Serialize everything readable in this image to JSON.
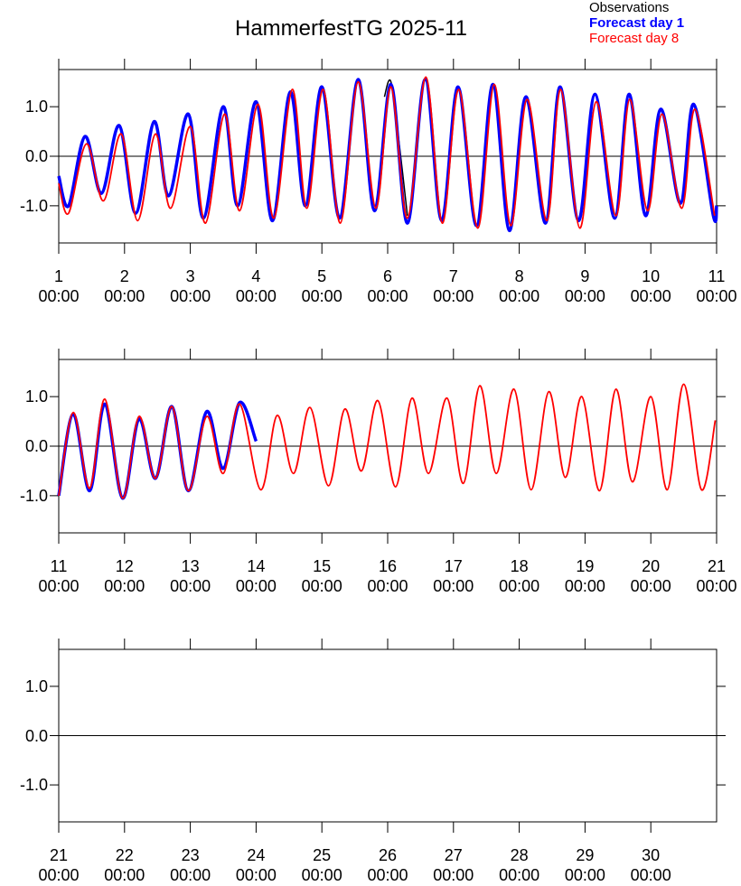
{
  "title": "HammerfestTG 2025-11",
  "chart_data": [
    {
      "type": "line",
      "xlim": [
        1,
        11
      ],
      "ylim": [
        -1.75,
        1.75
      ],
      "yticks": [
        {
          "value": -1,
          "label": "-1.0"
        },
        {
          "value": 0,
          "label": "0.0"
        },
        {
          "value": 1,
          "label": "1.0"
        }
      ],
      "xticks": [
        {
          "value": 1,
          "label": "1\n00:00"
        },
        {
          "value": 2,
          "label": "2\n00:00"
        },
        {
          "value": 3,
          "label": "3\n00:00"
        },
        {
          "value": 4,
          "label": "4\n00:00"
        },
        {
          "value": 5,
          "label": "5\n00:00"
        },
        {
          "value": 6,
          "label": "6\n00:00"
        },
        {
          "value": 7,
          "label": "7\n00:00"
        },
        {
          "value": 8,
          "label": "8\n00:00"
        },
        {
          "value": 9,
          "label": "9\n00:00"
        },
        {
          "value": 10,
          "label": "10\n00:00"
        },
        {
          "value": 11,
          "label": "11\n00:00"
        }
      ],
      "series": [
        {
          "name": "Observations",
          "color": "#000000",
          "x": [
            5.95,
            6.05,
            6.18,
            6.3
          ],
          "values": [
            1.2,
            1.5,
            0.2,
            -1.2
          ]
        },
        {
          "name": "Forecast day 1",
          "color": "#0000ff",
          "x": [
            1.0,
            1.15,
            1.4,
            1.65,
            1.92,
            2.17,
            2.45,
            2.67,
            2.97,
            3.2,
            3.5,
            3.72,
            4.0,
            4.25,
            4.52,
            4.75,
            5.0,
            5.27,
            5.55,
            5.8,
            6.05,
            6.3,
            6.57,
            6.82,
            7.07,
            7.35,
            7.6,
            7.85,
            8.1,
            8.4,
            8.62,
            8.9,
            9.15,
            9.45,
            9.67,
            9.92,
            10.15,
            10.45,
            10.65,
            10.95,
            11.0
          ],
          "values": [
            -0.4,
            -1.0,
            0.4,
            -0.75,
            0.62,
            -1.15,
            0.7,
            -0.8,
            0.85,
            -1.25,
            1.0,
            -1.0,
            1.1,
            -1.3,
            1.3,
            -1.0,
            1.4,
            -1.25,
            1.55,
            -1.1,
            1.45,
            -1.35,
            1.55,
            -1.3,
            1.4,
            -1.4,
            1.45,
            -1.5,
            1.2,
            -1.35,
            1.4,
            -1.3,
            1.25,
            -1.25,
            1.25,
            -1.2,
            0.95,
            -0.95,
            1.05,
            -1.2,
            -1.0
          ]
        },
        {
          "name": "Forecast day 8",
          "color": "#ff0000",
          "x": [
            1.0,
            1.15,
            1.42,
            1.68,
            1.95,
            2.2,
            2.47,
            2.7,
            3.0,
            3.23,
            3.52,
            3.75,
            4.03,
            4.27,
            4.55,
            4.77,
            5.02,
            5.28,
            5.55,
            5.82,
            6.05,
            6.3,
            6.58,
            6.83,
            7.08,
            7.37,
            7.62,
            7.87,
            8.12,
            8.42,
            8.63,
            8.92,
            9.17,
            9.47,
            9.68,
            9.95,
            10.17,
            10.47,
            10.67,
            10.97
          ],
          "values": [
            -0.55,
            -1.15,
            0.25,
            -0.9,
            0.45,
            -1.3,
            0.45,
            -1.05,
            0.6,
            -1.35,
            0.85,
            -1.1,
            1.05,
            -1.25,
            1.35,
            -1.05,
            1.35,
            -1.35,
            1.5,
            -1.05,
            1.4,
            -1.25,
            1.6,
            -1.35,
            1.35,
            -1.45,
            1.45,
            -1.4,
            1.15,
            -1.3,
            1.35,
            -1.45,
            1.1,
            -1.2,
            1.15,
            -1.1,
            0.85,
            -1.05,
            0.95,
            -1.2
          ]
        }
      ]
    },
    {
      "type": "line",
      "xlim": [
        11,
        21
      ],
      "ylim": [
        -1.75,
        1.75
      ],
      "yticks": [
        {
          "value": -1,
          "label": "-1.0"
        },
        {
          "value": 0,
          "label": "0.0"
        },
        {
          "value": 1,
          "label": "1.0"
        }
      ],
      "xticks": [
        {
          "value": 11,
          "label": "11\n00:00"
        },
        {
          "value": 12,
          "label": "12\n00:00"
        },
        {
          "value": 13,
          "label": "13\n00:00"
        },
        {
          "value": 14,
          "label": "14\n00:00"
        },
        {
          "value": 15,
          "label": "15\n00:00"
        },
        {
          "value": 16,
          "label": "16\n00:00"
        },
        {
          "value": 17,
          "label": "17\n00:00"
        },
        {
          "value": 18,
          "label": "18\n00:00"
        },
        {
          "value": 19,
          "label": "19\n00:00"
        },
        {
          "value": 20,
          "label": "20\n00:00"
        },
        {
          "value": 21,
          "label": "21\n00:00"
        }
      ],
      "series": [
        {
          "color": "#0000ff",
          "x": [
            11.0,
            11.22,
            11.47,
            11.7,
            11.97,
            12.22,
            12.47,
            12.72,
            12.97,
            13.25,
            13.5,
            13.75,
            14.0
          ],
          "values": [
            -1.0,
            0.65,
            -0.9,
            0.85,
            -1.05,
            0.55,
            -0.65,
            0.8,
            -0.9,
            0.7,
            -0.45,
            0.88,
            0.1
          ]
        },
        {
          "color": "#ff0000",
          "x": [
            11.0,
            11.22,
            11.47,
            11.7,
            11.97,
            12.22,
            12.47,
            12.72,
            12.97,
            13.25,
            13.5,
            13.75,
            14.07,
            14.32,
            14.57,
            14.82,
            15.1,
            15.35,
            15.6,
            15.85,
            16.12,
            16.37,
            16.62,
            16.9,
            17.15,
            17.4,
            17.65,
            17.92,
            18.18,
            18.45,
            18.7,
            18.95,
            19.22,
            19.47,
            19.72,
            20.0,
            20.25,
            20.5,
            20.77,
            20.98
          ],
          "values": [
            -1.0,
            0.68,
            -0.85,
            0.95,
            -1.05,
            0.6,
            -0.65,
            0.8,
            -0.9,
            0.6,
            -0.55,
            0.85,
            -0.88,
            0.62,
            -0.55,
            0.78,
            -0.8,
            0.75,
            -0.5,
            0.92,
            -0.82,
            0.97,
            -0.55,
            0.97,
            -0.75,
            1.22,
            -0.55,
            1.15,
            -0.88,
            1.1,
            -0.63,
            1.0,
            -0.9,
            1.15,
            -0.72,
            1.0,
            -0.88,
            1.25,
            -0.88,
            0.52
          ]
        }
      ]
    },
    {
      "type": "line",
      "xlim": [
        21,
        31
      ],
      "ylim": [
        -1.75,
        1.75
      ],
      "yticks": [
        {
          "value": -1,
          "label": "-1.0"
        },
        {
          "value": 0,
          "label": "0.0"
        },
        {
          "value": 1,
          "label": "1.0"
        }
      ],
      "xticks": [
        {
          "value": 21,
          "label": "21\n00:00"
        },
        {
          "value": 22,
          "label": "22\n00:00"
        },
        {
          "value": 23,
          "label": "23\n00:00"
        },
        {
          "value": 24,
          "label": "24\n00:00"
        },
        {
          "value": 25,
          "label": "25\n00:00"
        },
        {
          "value": 26,
          "label": "26\n00:00"
        },
        {
          "value": 27,
          "label": "27\n00:00"
        },
        {
          "value": 28,
          "label": "28\n00:00"
        },
        {
          "value": 29,
          "label": "29\n00:00"
        },
        {
          "value": 30,
          "label": "30\n00:00"
        }
      ],
      "series": []
    }
  ]
}
